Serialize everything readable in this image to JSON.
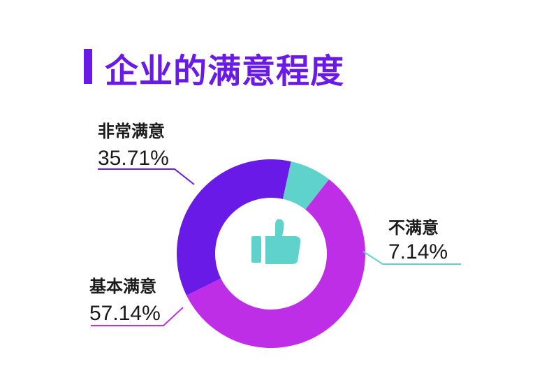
{
  "chart_data": {
    "type": "pie",
    "title": "企业的满意程度",
    "slices": [
      {
        "label": "非常满意",
        "value": 35.71,
        "display": "35.71%",
        "color": "#6a1ae6"
      },
      {
        "label": "不满意",
        "value": 7.14,
        "display": "7.14%",
        "color": "#5fd3cb"
      },
      {
        "label": "基本满意",
        "value": 57.14,
        "display": "57.14%",
        "color": "#be2ee6"
      }
    ],
    "center_icon": "thumbs-up-icon",
    "icon_color": "#5fd3cb"
  }
}
